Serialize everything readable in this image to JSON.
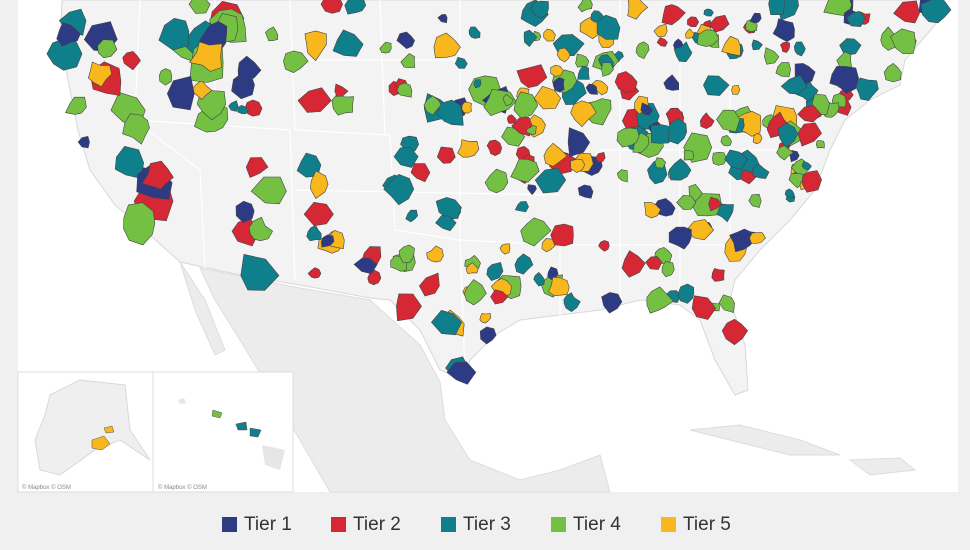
{
  "legend": {
    "items": [
      {
        "label": "Tier 1",
        "color": "#2d3a84"
      },
      {
        "label": "Tier 2",
        "color": "#d62834"
      },
      {
        "label": "Tier 3",
        "color": "#0f7f8c"
      },
      {
        "label": "Tier 4",
        "color": "#74c043"
      },
      {
        "label": "Tier 5",
        "color": "#f7b71d"
      }
    ]
  },
  "insets": {
    "alaska_attribution": "© Mapbox © OSM",
    "hawaii_attribution": "© Mapbox © OSM"
  }
}
